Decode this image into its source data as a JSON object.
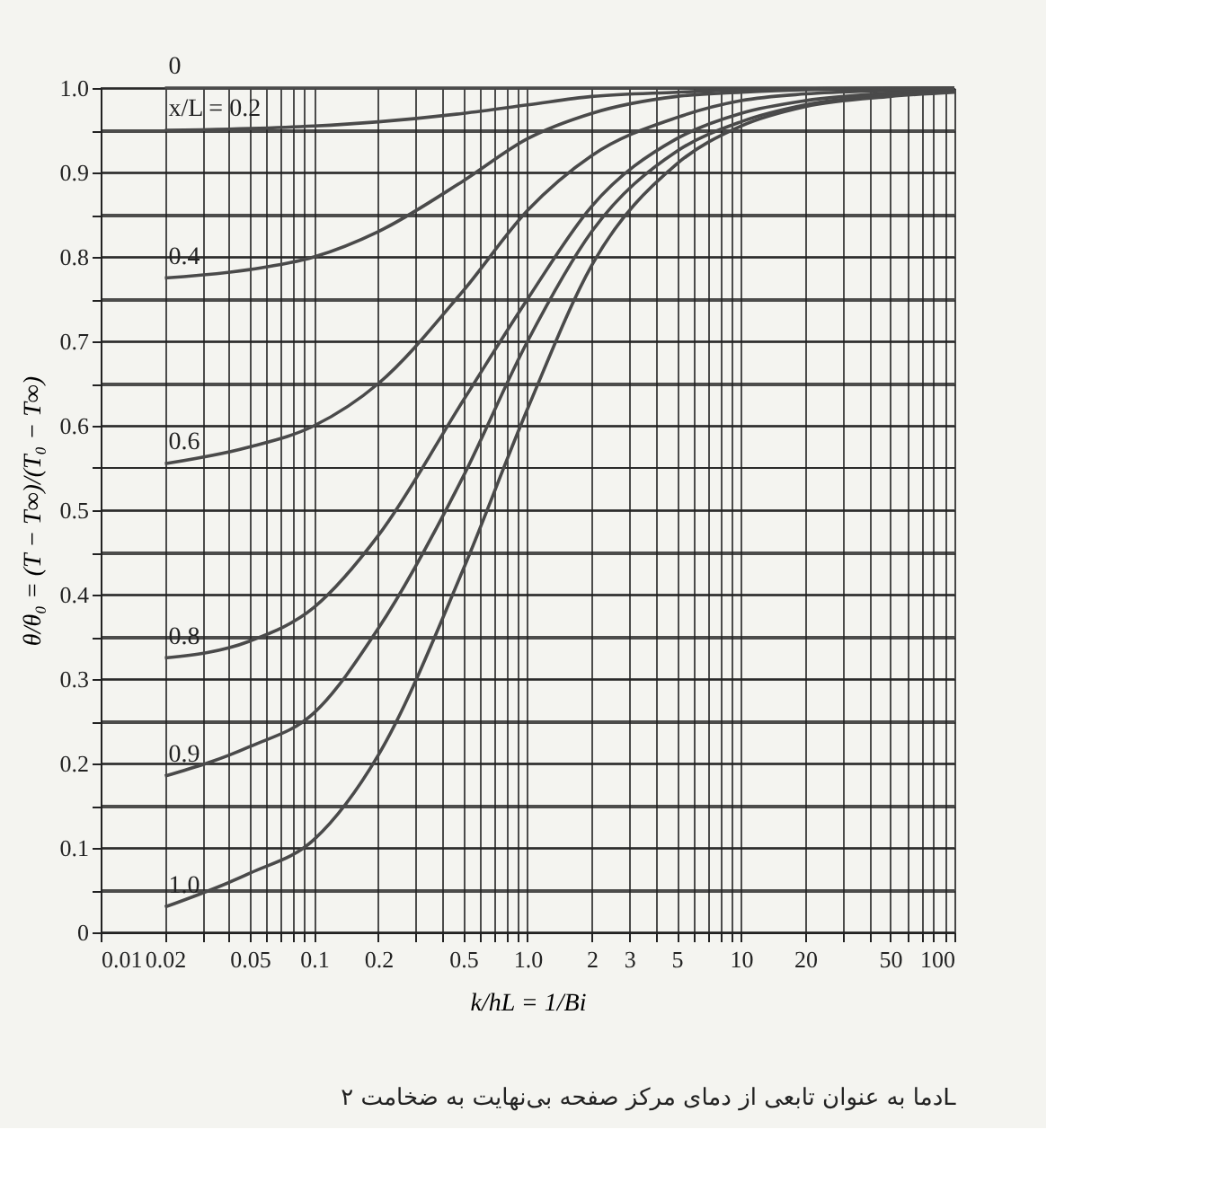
{
  "chart_data": {
    "type": "line",
    "xlabel": "k/hL = 1/Bi",
    "ylabel": "θ/θ₀ = (T − T∞)/(T₀ − T∞)",
    "annotations": [
      "دما به عنوان تابعی از دمای مرکز صفحه بی‌نهایت به ضخامت ۲L"
    ],
    "log": "x",
    "grid": true,
    "legend": false,
    "marker": "none",
    "line_style": "solid",
    "x": [
      0.02,
      0.05,
      0.1,
      0.2,
      0.5,
      1,
      2,
      5,
      10,
      20,
      50,
      100
    ],
    "xlim": [
      0.01,
      100
    ],
    "xticks": [
      0.01,
      0.02,
      {
        "value": 0.03,
        "label": null
      },
      {
        "value": 0.04,
        "label": null
      },
      0.05,
      {
        "value": 0.06,
        "label": null
      },
      {
        "value": 0.07,
        "label": null
      },
      {
        "value": 0.08,
        "label": null
      },
      {
        "value": 0.09,
        "label": null
      },
      0.1,
      0.2,
      {
        "value": 0.3,
        "label": null
      },
      {
        "value": 0.4,
        "label": null
      },
      0.5,
      {
        "value": 0.6,
        "label": null
      },
      {
        "value": 0.7,
        "label": null
      },
      {
        "value": 0.8,
        "label": null
      },
      {
        "value": 0.9,
        "label": null
      },
      {
        "value": 1,
        "label": "1.0"
      },
      2,
      3,
      {
        "value": 4,
        "label": null
      },
      5,
      {
        "value": 6,
        "label": null
      },
      {
        "value": 7,
        "label": null
      },
      {
        "value": 8,
        "label": null
      },
      {
        "value": 9,
        "label": null
      },
      10,
      20,
      {
        "value": 30,
        "label": null
      },
      {
        "value": 40,
        "label": null
      },
      50,
      {
        "value": 60,
        "label": null
      },
      {
        "value": 70,
        "label": null
      },
      {
        "value": 80,
        "label": null
      },
      {
        "value": 90,
        "label": null
      },
      100
    ],
    "ylim": [
      0,
      1
    ],
    "yticks": [
      0,
      {
        "value": 0.05,
        "label": null
      },
      0.1,
      {
        "value": 0.15,
        "label": null
      },
      0.2,
      {
        "value": 0.25,
        "label": null
      },
      0.3,
      {
        "value": 0.35,
        "label": null
      },
      0.4,
      {
        "value": 0.45,
        "label": null
      },
      0.5,
      {
        "value": 0.55,
        "label": null
      },
      0.6,
      {
        "value": 0.65,
        "label": null
      },
      0.7,
      {
        "value": 0.75,
        "label": null
      },
      0.8,
      {
        "value": 0.85,
        "label": null
      },
      0.9,
      {
        "value": 0.95,
        "label": null
      },
      {
        "value": 1,
        "label": "1.0"
      }
    ],
    "series": [
      {
        "name": "0",
        "color": "#4a4a4a",
        "values": [
          1,
          1,
          1,
          1,
          1,
          1,
          1,
          1,
          1,
          1,
          1,
          1
        ]
      },
      {
        "name": "x/L = 0.2",
        "color": "#4a4a4a",
        "values": [
          0.95,
          0.952,
          0.955,
          0.96,
          0.97,
          0.98,
          0.99,
          0.995,
          0.998,
          0.999,
          1.0,
          1.0
        ]
      },
      {
        "name": "0.4",
        "color": "#4a4a4a",
        "values": [
          0.775,
          0.785,
          0.8,
          0.83,
          0.89,
          0.94,
          0.97,
          0.99,
          0.995,
          0.998,
          0.999,
          1.0
        ]
      },
      {
        "name": "0.6",
        "color": "#4a4a4a",
        "values": [
          0.555,
          0.575,
          0.6,
          0.65,
          0.76,
          0.855,
          0.92,
          0.965,
          0.985,
          0.993,
          0.997,
          0.999
        ]
      },
      {
        "name": "0.8",
        "color": "#4a4a4a",
        "values": [
          0.325,
          0.345,
          0.385,
          0.47,
          0.63,
          0.75,
          0.86,
          0.94,
          0.97,
          0.985,
          0.994,
          0.997
        ]
      },
      {
        "name": "0.9",
        "color": "#4a4a4a",
        "values": [
          0.185,
          0.22,
          0.26,
          0.36,
          0.54,
          0.7,
          0.83,
          0.925,
          0.96,
          0.98,
          0.992,
          0.996
        ]
      },
      {
        "name": "1.0",
        "color": "#4a4a4a",
        "values": [
          0.03,
          0.07,
          0.11,
          0.21,
          0.43,
          0.62,
          0.79,
          0.91,
          0.955,
          0.978,
          0.99,
          0.995
        ]
      }
    ]
  }
}
